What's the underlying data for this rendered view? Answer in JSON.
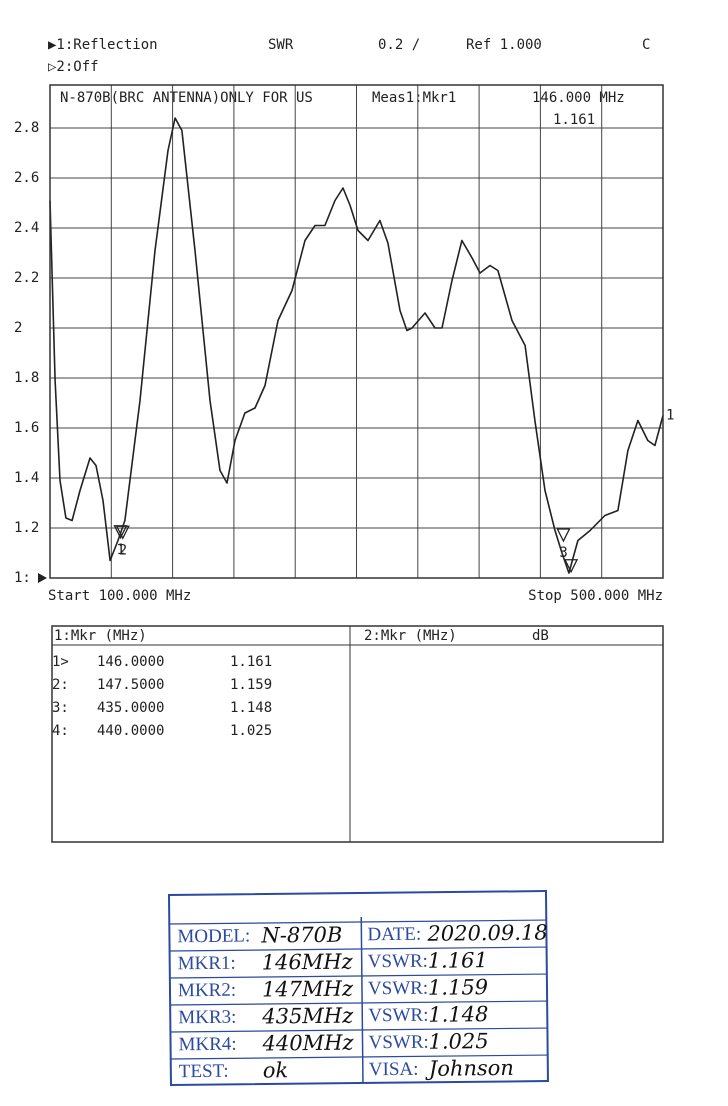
{
  "header": {
    "trace1": "▶1:Reflection",
    "format": "SWR",
    "scale": "0.2 /",
    "ref": "Ref  1.000",
    "flag": "C",
    "trace2": "▷2:Off"
  },
  "chart_data": {
    "type": "line",
    "title": "N-870B(BRC ANTENNA)ONLY FOR US",
    "readout_label": "Meas1:Mkr1",
    "readout_freq": "146.000 MHz",
    "readout_value": "1.161",
    "start_label": "Start 100.000 MHz",
    "stop_label": "Stop 500.000 MHz",
    "trace_label": "1",
    "xlim": [
      100,
      500
    ],
    "ylim": [
      1,
      2.972
    ],
    "yticks": [
      {
        "value": 1,
        "label": "1:"
      },
      1.2,
      1.4,
      1.6,
      1.8,
      2,
      2.2,
      2.4,
      2.6,
      2.8
    ],
    "grid": true,
    "x": [
      100,
      103.3,
      106.5,
      110.4,
      114.4,
      119.6,
      126.1,
      130,
      134.6,
      139.2,
      144.4,
      148.9,
      158.7,
      168.5,
      177,
      181.6,
      186.1,
      194.6,
      204.4,
      210.9,
      215.5,
      220.7,
      227.2,
      233.8,
      240.3,
      248.8,
      257.9,
      266.4,
      272.9,
      279.4,
      286,
      291.2,
      295.8,
      301,
      307.5,
      315.3,
      320.5,
      328.4,
      332.9,
      336.2,
      344.7,
      351.2,
      355.8,
      362.3,
      368.8,
      375.4,
      380.6,
      387.1,
      392.3,
      401.5,
      410,
      416.4,
      423,
      429.5,
      434.1,
      438.6,
      444.5,
      452.4,
      462.1,
      470.6,
      477.1,
      483.6,
      490.1,
      494.7,
      500
    ],
    "series": [
      {
        "color": "#222222",
        "values": [
          2.51,
          1.79,
          1.39,
          1.24,
          1.23,
          1.35,
          1.48,
          1.45,
          1.31,
          1.07,
          1.15,
          1.23,
          1.71,
          2.31,
          2.71,
          2.84,
          2.79,
          2.31,
          1.71,
          1.43,
          1.38,
          1.55,
          1.66,
          1.68,
          1.77,
          2.03,
          2.15,
          2.35,
          2.41,
          2.41,
          2.51,
          2.56,
          2.49,
          2.39,
          2.35,
          2.43,
          2.34,
          2.07,
          1.99,
          2.0,
          2.06,
          2.0,
          2.0,
          2.19,
          2.35,
          2.28,
          2.22,
          2.25,
          2.23,
          2.03,
          1.93,
          1.63,
          1.35,
          1.19,
          1.1,
          1.02,
          1.15,
          1.19,
          1.25,
          1.27,
          1.51,
          1.63,
          1.55,
          1.53,
          1.65
        ]
      }
    ],
    "markers": [
      {
        "label": "1",
        "x": 146,
        "y": 1.161
      },
      {
        "label": "2",
        "x": 147.5,
        "y": 1.159
      },
      {
        "label": "3",
        "x": 435,
        "y": 1.148
      },
      {
        "x": 440,
        "y": 1.025
      }
    ]
  },
  "table": {
    "headers": [
      "1:Mkr (MHz)",
      "2:Mkr (MHz)",
      "dB"
    ],
    "rows": [
      [
        "1>",
        "146.0000",
        "1.161"
      ],
      [
        "2:",
        "147.5000",
        "1.159"
      ],
      [
        "3:",
        "435.0000",
        "1.148"
      ],
      [
        "4:",
        "440.0000",
        "1.025"
      ]
    ]
  },
  "stamp": {
    "rows": [
      [
        "MODEL:",
        "N-870B",
        "DATE:",
        "2020.09.18"
      ],
      [
        "MKR1:",
        "146MHz",
        "VSWR:",
        "1.161"
      ],
      [
        "MKR2:",
        "147MHz",
        "VSWR:",
        "1.159"
      ],
      [
        "MKR3:",
        "435MHz",
        "VSWR:",
        "1.148"
      ],
      [
        "MKR4:",
        "440MHz",
        "VSWR:",
        "1.025"
      ],
      [
        "TEST:",
        "ok",
        "VISA:",
        "Johnson"
      ]
    ]
  }
}
